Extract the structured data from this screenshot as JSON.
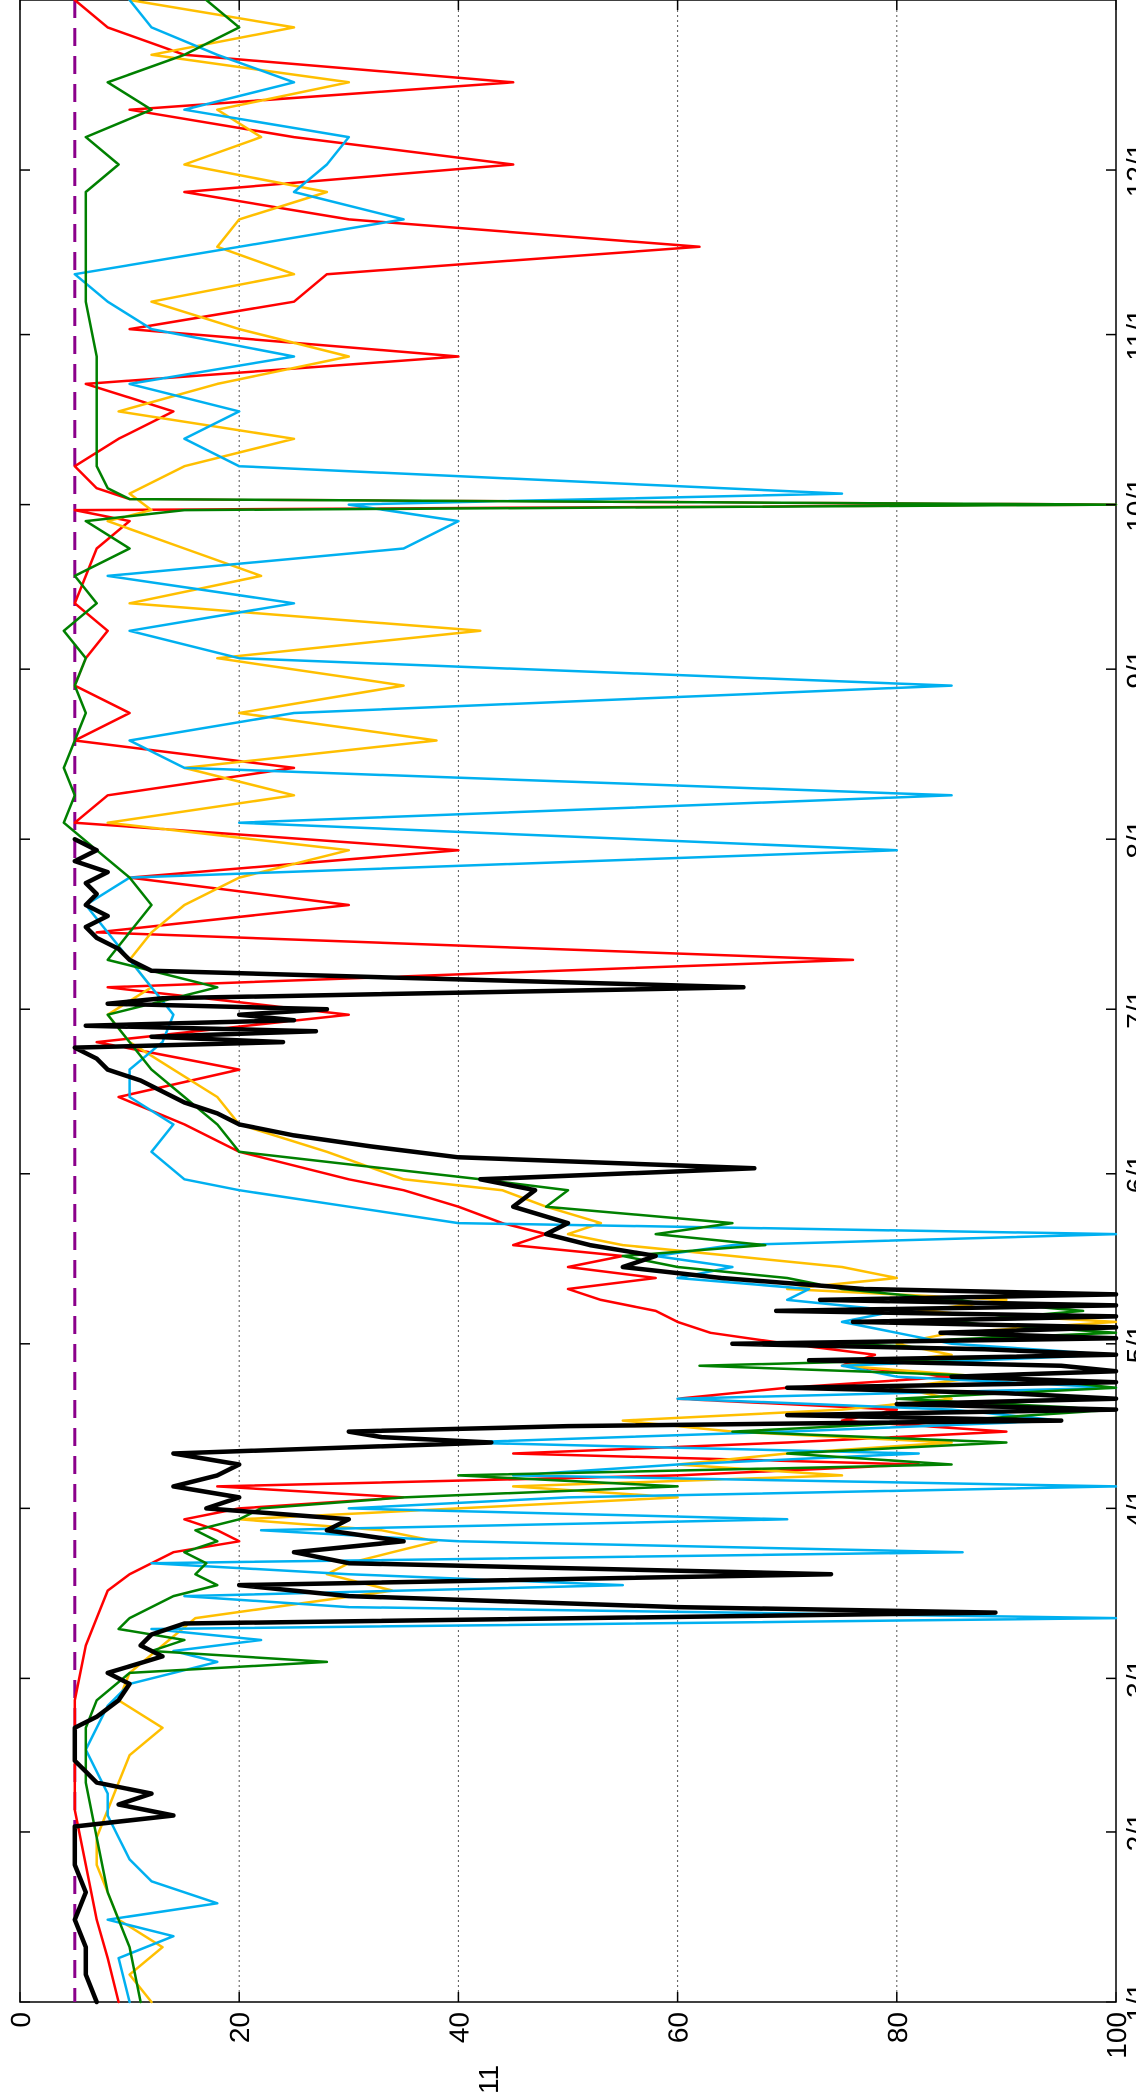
{
  "chart_data": {
    "type": "line",
    "orientation": "rotated-90-ccw",
    "title": "",
    "ylabel_partial": "11",
    "grid": "horizontal dotted at each y tick",
    "legend": "none",
    "x_tick_labels": [
      "1/1",
      "2/1",
      "3/1",
      "4/1",
      "5/1",
      "6/1",
      "7/1",
      "8/1",
      "9/1",
      "10/1",
      "11/1",
      "12/1"
    ],
    "x_tick_days": [
      0,
      31,
      59,
      90,
      120,
      151,
      181,
      212,
      243,
      273,
      304,
      334
    ],
    "xlim_days": [
      0,
      365
    ],
    "ylim": [
      0,
      100
    ],
    "y_ticks": [
      0,
      20,
      40,
      60,
      80,
      100
    ],
    "y_tick_labels": [
      "0",
      "20",
      "40",
      "60",
      "80",
      "100"
    ],
    "reference_line": {
      "y": 5,
      "color": "#8b008b",
      "style": "dashed"
    },
    "series": [
      {
        "color": "#000000",
        "width": 4.5,
        "x": [
          0,
          5,
          10,
          15,
          20,
          25,
          30,
          32,
          34,
          36,
          38,
          40,
          42,
          44,
          46,
          48,
          50,
          52,
          55,
          58,
          60,
          63,
          65,
          67,
          69,
          71,
          72,
          74,
          76,
          78,
          80,
          82,
          84,
          86,
          88,
          90,
          92,
          94,
          96,
          98,
          100,
          102,
          103,
          104,
          105,
          106,
          107,
          108,
          109,
          110,
          111,
          112,
          113,
          114,
          115,
          116,
          117,
          118,
          119,
          120,
          121,
          122,
          123,
          124,
          125,
          126,
          127,
          128,
          129,
          130,
          132,
          134,
          136,
          138,
          140,
          142,
          145,
          148,
          150,
          152,
          154,
          156,
          158,
          160,
          162,
          164,
          166,
          168,
          170,
          172,
          174,
          175,
          176,
          177,
          178,
          179,
          180,
          181,
          182,
          183,
          185,
          188,
          190,
          192,
          194,
          196,
          198,
          200,
          202,
          204,
          206,
          208,
          210,
          212
        ],
        "y": [
          7,
          6,
          6,
          5,
          6,
          5,
          5,
          5,
          14,
          9,
          12,
          7,
          6,
          5,
          5,
          5,
          5,
          7,
          9,
          10,
          8,
          13,
          11,
          12,
          15,
          89,
          60,
          30,
          20,
          74,
          30,
          25,
          35,
          28,
          30,
          17,
          20,
          14,
          18,
          20,
          14,
          43,
          33,
          30,
          50,
          95,
          70,
          100,
          80,
          100,
          90,
          70,
          100,
          85,
          100,
          95,
          72,
          100,
          88,
          65,
          100,
          84,
          100,
          76,
          100,
          69,
          100,
          73,
          100,
          77,
          64,
          55,
          58,
          52,
          48,
          50,
          45,
          47,
          42,
          67,
          40,
          32,
          25,
          20,
          18,
          15,
          13,
          11,
          8,
          7,
          5,
          24,
          12,
          27,
          6,
          25,
          20,
          28,
          8,
          13,
          66,
          12,
          10,
          9,
          7,
          6,
          8,
          6,
          7,
          6,
          8,
          5,
          7,
          5
        ]
      },
      {
        "color": "#ff0000",
        "width": 2.5,
        "x": [
          0,
          8,
          15,
          25,
          35,
          45,
          55,
          65,
          70,
          75,
          78,
          80,
          82,
          84,
          86,
          88,
          90,
          92,
          94,
          96,
          98,
          100,
          102,
          104,
          106,
          108,
          110,
          112,
          114,
          116,
          118,
          120,
          122,
          124,
          126,
          128,
          130,
          132,
          134,
          136,
          138,
          140,
          142,
          145,
          148,
          150,
          155,
          160,
          165,
          170,
          175,
          180,
          185,
          190,
          195,
          200,
          205,
          210,
          215,
          220,
          225,
          230,
          235,
          240,
          245,
          250,
          255,
          260,
          265,
          270,
          272,
          273,
          274,
          276,
          280,
          285,
          290,
          295,
          300,
          305,
          310,
          315,
          320,
          325,
          330,
          335,
          340,
          345,
          350,
          355,
          360,
          365
        ],
        "y": [
          9,
          8,
          7,
          6,
          5,
          5,
          5,
          6,
          7,
          8,
          10,
          12,
          14,
          20,
          18,
          15,
          20,
          35,
          18,
          60,
          82,
          45,
          70,
          90,
          75,
          80,
          60,
          70,
          85,
          75,
          78,
          70,
          63,
          60,
          58,
          53,
          50,
          58,
          50,
          55,
          45,
          48,
          44,
          40,
          35,
          30,
          20,
          15,
          9,
          20,
          7,
          30,
          8,
          76,
          7,
          30,
          10,
          40,
          5,
          8,
          25,
          5,
          10,
          5,
          6,
          8,
          5,
          6,
          7,
          10,
          5,
          100,
          10,
          7,
          5,
          9,
          14,
          6,
          40,
          10,
          25,
          28,
          62,
          30,
          15,
          45,
          25,
          10,
          45,
          15,
          8,
          5
        ]
      },
      {
        "color": "#ffbf00",
        "width": 2.5,
        "x": [
          0,
          5,
          10,
          15,
          20,
          25,
          30,
          35,
          40,
          45,
          50,
          55,
          60,
          65,
          70,
          75,
          78,
          80,
          82,
          84,
          86,
          88,
          90,
          92,
          94,
          96,
          98,
          100,
          102,
          104,
          106,
          108,
          110,
          112,
          114,
          116,
          118,
          120,
          122,
          124,
          126,
          128,
          130,
          132,
          134,
          136,
          138,
          140,
          142,
          145,
          148,
          150,
          155,
          160,
          165,
          170,
          175,
          180,
          185,
          190,
          195,
          200,
          205,
          210,
          215,
          220,
          225,
          230,
          235,
          240,
          245,
          250,
          255,
          260,
          265,
          270,
          272,
          275,
          280,
          285,
          290,
          295,
          300,
          305,
          310,
          315,
          320,
          325,
          330,
          335,
          340,
          345,
          350,
          355,
          360,
          365
        ],
        "y": [
          12,
          10,
          13,
          9,
          8,
          7,
          7,
          8,
          9,
          10,
          13,
          9,
          10,
          13,
          16,
          34,
          28,
          30,
          34,
          38,
          33,
          20,
          40,
          60,
          45,
          75,
          60,
          70,
          85,
          65,
          55,
          75,
          85,
          80,
          88,
          75,
          85,
          80,
          85,
          100,
          82,
          90,
          70,
          80,
          75,
          65,
          55,
          50,
          53,
          48,
          44,
          35,
          28,
          20,
          18,
          14,
          10,
          8,
          12,
          10,
          12,
          15,
          20,
          30,
          8,
          25,
          15,
          38,
          20,
          35,
          18,
          42,
          10,
          22,
          15,
          8,
          12,
          10,
          15,
          25,
          9,
          18,
          30,
          20,
          12,
          25,
          18,
          20,
          28,
          15,
          22,
          18,
          30,
          12,
          25,
          10
        ]
      },
      {
        "color": "#00b0f0",
        "width": 2.5,
        "x": [
          0,
          8,
          12,
          15,
          18,
          22,
          26,
          30,
          34,
          38,
          42,
          46,
          50,
          54,
          58,
          62,
          64,
          66,
          68,
          70,
          72,
          74,
          76,
          78,
          80,
          82,
          84,
          86,
          88,
          90,
          92,
          94,
          96,
          98,
          100,
          102,
          104,
          106,
          108,
          110,
          112,
          114,
          116,
          118,
          120,
          122,
          124,
          126,
          128,
          130,
          132,
          134,
          136,
          138,
          140,
          142,
          145,
          148,
          150,
          155,
          160,
          165,
          170,
          175,
          180,
          185,
          190,
          195,
          200,
          205,
          210,
          215,
          220,
          225,
          230,
          235,
          240,
          245,
          250,
          255,
          260,
          265,
          270,
          273,
          275,
          280,
          285,
          290,
          295,
          300,
          305,
          310,
          315,
          320,
          325,
          330,
          335,
          340,
          345,
          350,
          355,
          360,
          365
        ],
        "y": [
          10,
          9,
          14,
          8,
          18,
          12,
          10,
          9,
          8,
          8,
          7,
          6,
          7,
          8,
          10,
          18,
          14,
          22,
          12,
          100,
          30,
          15,
          55,
          30,
          12,
          86,
          40,
          22,
          70,
          30,
          50,
          100,
          45,
          60,
          82,
          40,
          70,
          95,
          85,
          60,
          100,
          80,
          75,
          100,
          85,
          80,
          75,
          80,
          70,
          72,
          60,
          65,
          58,
          65,
          100,
          40,
          30,
          20,
          15,
          12,
          14,
          10,
          10,
          13,
          14,
          12,
          10,
          8,
          6,
          10,
          80,
          20,
          85,
          15,
          10,
          25,
          85,
          20,
          10,
          25,
          8,
          35,
          40,
          30,
          75,
          20,
          15,
          20,
          10,
          25,
          12,
          8,
          5,
          20,
          35,
          25,
          28,
          30,
          15,
          25,
          18,
          12,
          10
        ]
      },
      {
        "color": "#008000",
        "width": 2.5,
        "x": [
          0,
          10,
          20,
          30,
          40,
          50,
          55,
          60,
          62,
          64,
          66,
          68,
          70,
          72,
          74,
          76,
          78,
          80,
          82,
          84,
          86,
          88,
          90,
          92,
          94,
          96,
          98,
          100,
          102,
          104,
          106,
          108,
          110,
          112,
          114,
          116,
          118,
          120,
          122,
          124,
          126,
          128,
          130,
          132,
          134,
          136,
          138,
          140,
          142,
          145,
          148,
          150,
          155,
          160,
          165,
          170,
          175,
          180,
          185,
          190,
          195,
          200,
          205,
          210,
          215,
          220,
          225,
          230,
          235,
          240,
          245,
          250,
          255,
          260,
          265,
          270,
          272,
          273,
          274,
          276,
          280,
          290,
          300,
          310,
          320,
          330,
          335,
          340,
          345,
          350,
          355,
          360,
          365
        ],
        "y": [
          11,
          10,
          8,
          7,
          6,
          6,
          7,
          10,
          28,
          12,
          15,
          9,
          10,
          12,
          14,
          18,
          16,
          17,
          15,
          18,
          16,
          20,
          22,
          35,
          60,
          40,
          85,
          70,
          90,
          65,
          85,
          100,
          80,
          100,
          90,
          62,
          100,
          75,
          100,
          85,
          97,
          85,
          75,
          70,
          60,
          55,
          68,
          58,
          65,
          48,
          50,
          42,
          20,
          18,
          15,
          12,
          10,
          8,
          18,
          8,
          10,
          12,
          10,
          7,
          4,
          5,
          4,
          5,
          6,
          5,
          6,
          4,
          7,
          5,
          10,
          6,
          15,
          100,
          10,
          8,
          7,
          7,
          7,
          6,
          6,
          6,
          9,
          6,
          12,
          8,
          15,
          20,
          17
        ]
      }
    ]
  }
}
